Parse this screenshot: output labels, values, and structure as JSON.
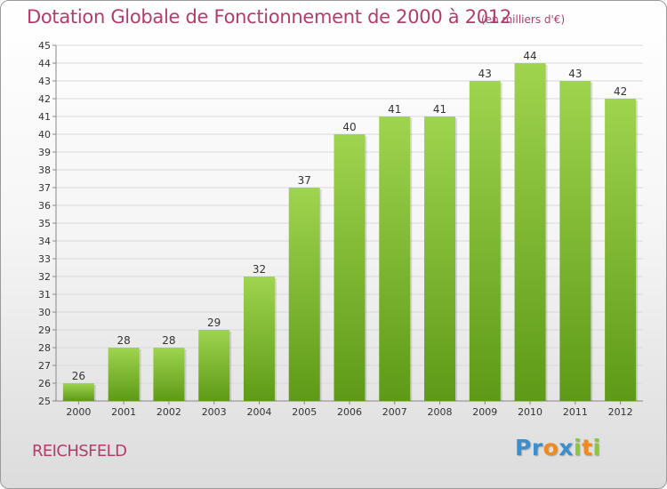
{
  "title": "Dotation Globale de Fonctionnement de 2000 à 2012",
  "unit_note": "(en milliers d'€)",
  "commune": "REICHSFELD",
  "logo": {
    "letters": [
      "P",
      "r",
      "o",
      "x",
      "i",
      "t",
      "i"
    ],
    "colors": [
      "#3a8fd0",
      "#3a8fd0",
      "#f08a1c",
      "#3a8fd0",
      "#8cc63f",
      "#f08a1c",
      "#8cc63f"
    ]
  },
  "colors": {
    "bar_light": "#9fd44e",
    "bar_dark": "#5e9a17",
    "grid": "#d9d9d9",
    "axis": "#888888"
  },
  "chart_data": {
    "type": "bar",
    "title": "Dotation Globale de Fonctionnement de 2000 à 2012",
    "xlabel": "",
    "ylabel": "",
    "categories": [
      "2000",
      "2001",
      "2002",
      "2003",
      "2004",
      "2005",
      "2006",
      "2007",
      "2008",
      "2009",
      "2010",
      "2011",
      "2012"
    ],
    "values": [
      26,
      28,
      28,
      29,
      32,
      37,
      40,
      41,
      41,
      43,
      44,
      43,
      42
    ],
    "ylim": [
      25,
      45
    ],
    "yticks": [
      25,
      26,
      27,
      28,
      29,
      30,
      31,
      32,
      33,
      34,
      35,
      36,
      37,
      38,
      39,
      40,
      41,
      42,
      43,
      44,
      45
    ],
    "grid": true,
    "legend": "none"
  }
}
